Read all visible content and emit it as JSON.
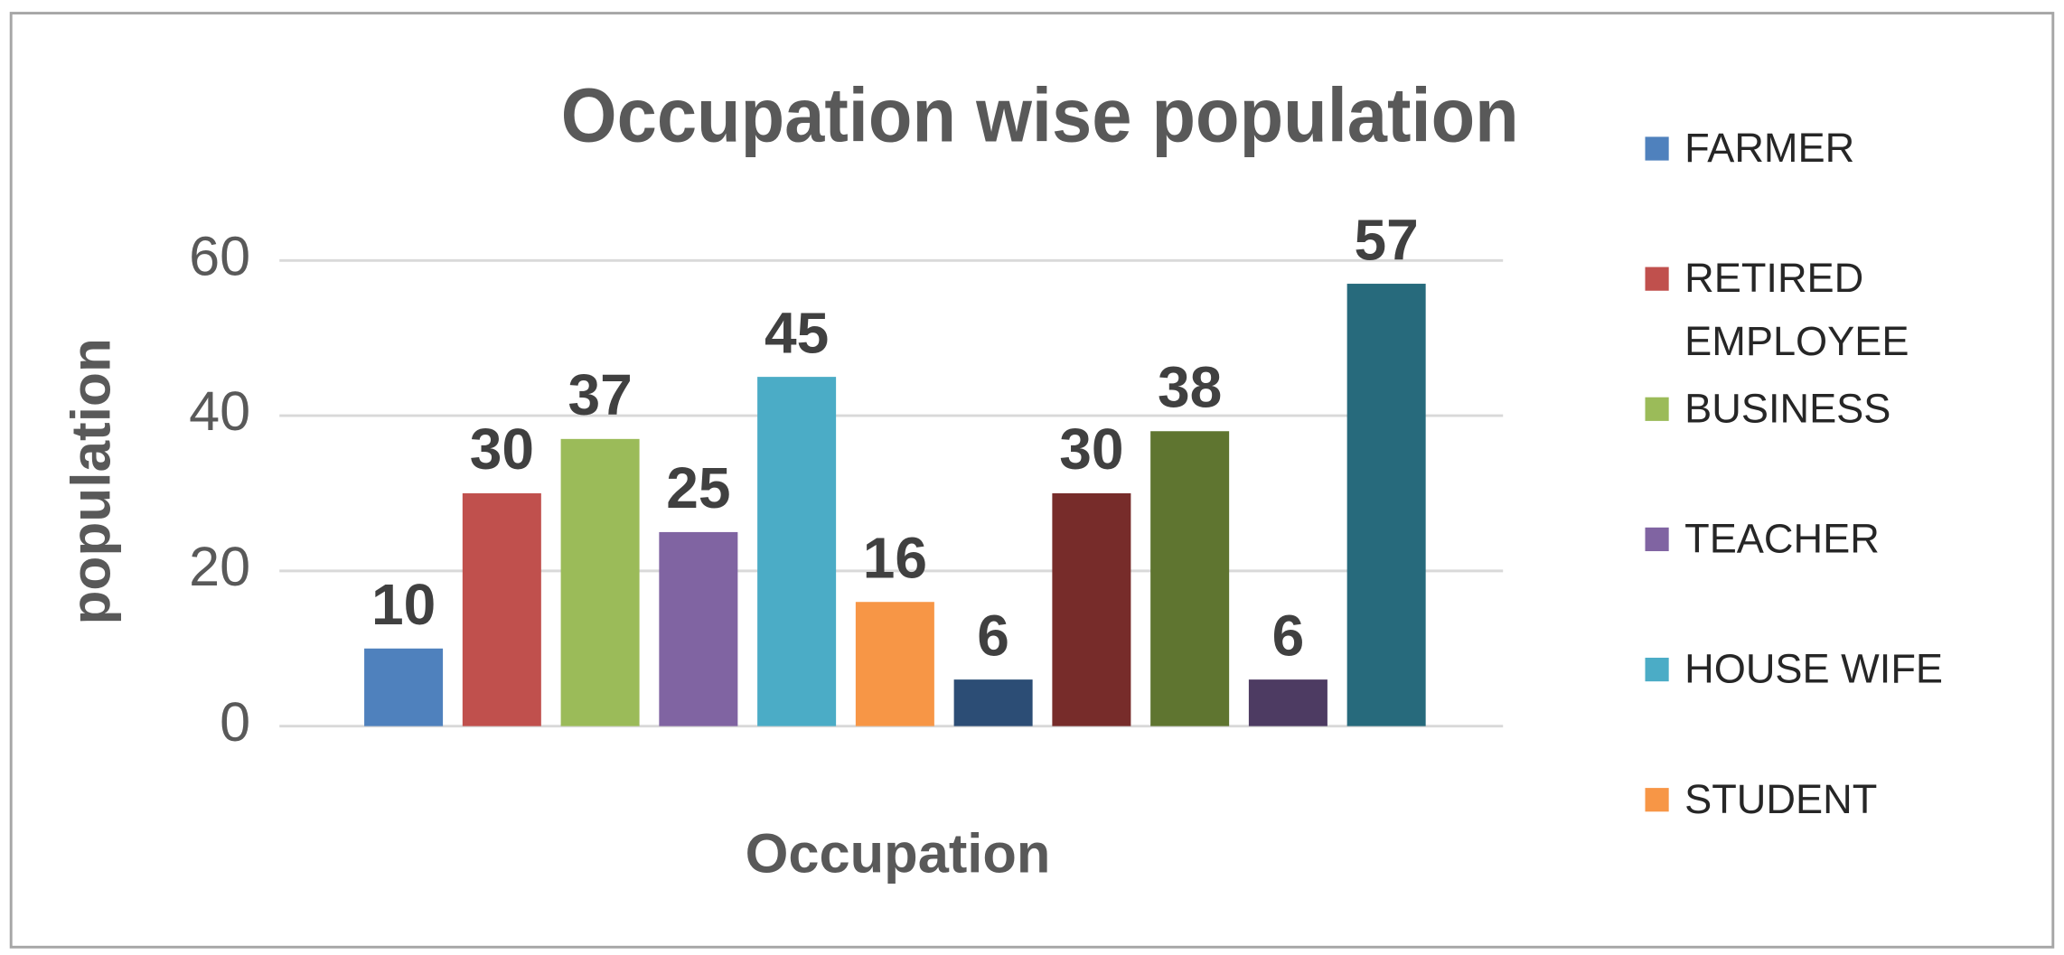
{
  "chart_data": {
    "type": "bar",
    "title": "Occupation wise population",
    "x_label": "Occupation",
    "y_label": "population",
    "categories": [
      "FARMER",
      "RETIRED EMPLOYEE",
      "BUSINESS",
      "TEACHER",
      "HOUSE WIFE",
      "STUDENT",
      null,
      null,
      null,
      null,
      null
    ],
    "values": [
      10,
      30,
      37,
      25,
      45,
      16,
      6,
      30,
      38,
      6,
      57
    ],
    "colors": [
      "#4f81bd",
      "#c0504d",
      "#9bbb59",
      "#8064a2",
      "#4bacc6",
      "#f79646",
      "#2c4d75",
      "#772c2a",
      "#5f7530",
      "#4d3b62",
      "#276a7c"
    ],
    "ylim": [
      0,
      60
    ],
    "yticks": [
      0,
      20,
      40,
      60
    ],
    "grid": true,
    "legend": "right"
  }
}
